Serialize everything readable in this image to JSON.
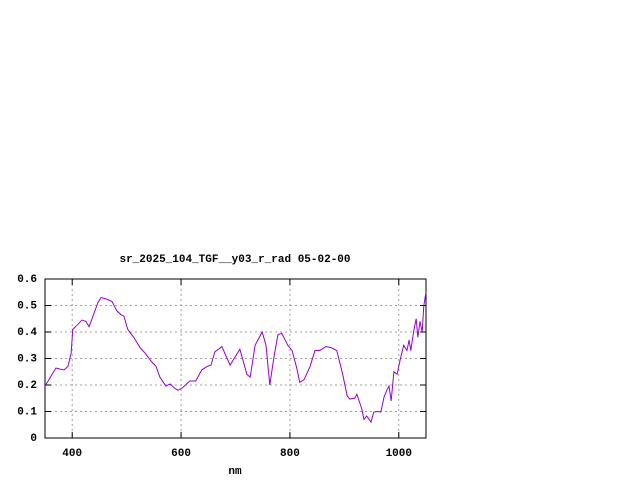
{
  "chart_data": {
    "type": "line",
    "title": "sr_2025_104_TGF__y03_r_rad 05-02-00",
    "x_label": "nm",
    "xlim": [
      350,
      1050
    ],
    "xticks": [
      400,
      600,
      800,
      1000
    ],
    "ylim": [
      0,
      0.6
    ],
    "yticks": [
      0,
      0.1,
      0.2,
      0.3,
      0.4,
      0.5,
      0.6
    ],
    "grid": true,
    "x": [
      350,
      359,
      370,
      378,
      385,
      392,
      398,
      401,
      411,
      418,
      425,
      431,
      440,
      447,
      453,
      462,
      473,
      482,
      490,
      495,
      502,
      513,
      525,
      534,
      545,
      554,
      561,
      572,
      580,
      587,
      594,
      603,
      616,
      627,
      638,
      648,
      655,
      662,
      675,
      690,
      708,
      721,
      727,
      736,
      749,
      756,
      763,
      771,
      778,
      785,
      796,
      804,
      813,
      818,
      826,
      837,
      846,
      855,
      866,
      877,
      886,
      897,
      905,
      910,
      919,
      923,
      932,
      936,
      941,
      949,
      954,
      962,
      967,
      973,
      978,
      982,
      986,
      991,
      997,
      1002,
      1009,
      1015,
      1019,
      1022,
      1028,
      1032,
      1035,
      1039,
      1043,
      1046,
      1050
    ],
    "series": [
      {
        "color": "#9400d3",
        "values": [
          0.196,
          0.226,
          0.264,
          0.26,
          0.257,
          0.27,
          0.32,
          0.41,
          0.43,
          0.445,
          0.44,
          0.42,
          0.47,
          0.51,
          0.53,
          0.525,
          0.515,
          0.48,
          0.465,
          0.46,
          0.41,
          0.38,
          0.34,
          0.32,
          0.29,
          0.27,
          0.23,
          0.196,
          0.204,
          0.19,
          0.18,
          0.19,
          0.215,
          0.215,
          0.257,
          0.27,
          0.275,
          0.325,
          0.345,
          0.275,
          0.335,
          0.24,
          0.23,
          0.35,
          0.4,
          0.35,
          0.2,
          0.31,
          0.39,
          0.395,
          0.35,
          0.33,
          0.26,
          0.21,
          0.22,
          0.27,
          0.33,
          0.33,
          0.345,
          0.34,
          0.33,
          0.24,
          0.16,
          0.147,
          0.15,
          0.165,
          0.11,
          0.07,
          0.083,
          0.06,
          0.098,
          0.1,
          0.098,
          0.155,
          0.18,
          0.196,
          0.14,
          0.25,
          0.24,
          0.29,
          0.35,
          0.33,
          0.37,
          0.33,
          0.41,
          0.45,
          0.38,
          0.44,
          0.4,
          0.5,
          0.55
        ]
      }
    ]
  }
}
